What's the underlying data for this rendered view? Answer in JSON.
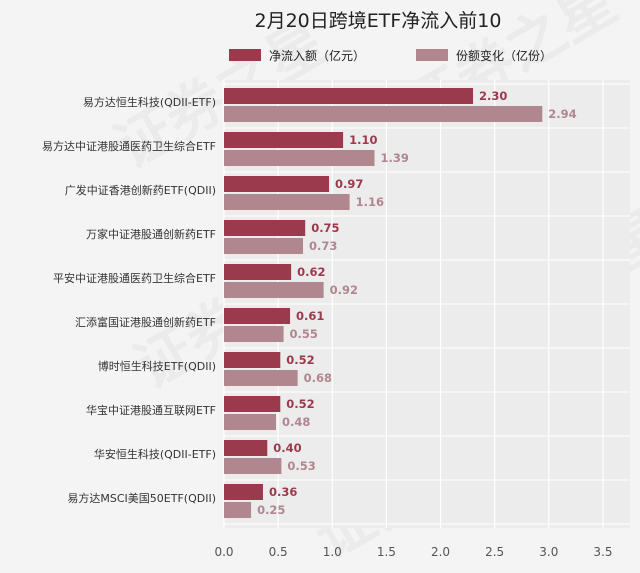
{
  "chart_data": {
    "type": "bar",
    "orientation": "horizontal",
    "title": "2月20日跨境ETF净流入前10",
    "categories": [
      "易方达恒生科技(QDII-ETF)",
      "易方达中证港股通医药卫生综合ETF",
      "广发中证香港创新药ETF(QDII)",
      "万家中证港股通创新药ETF",
      "平安中证港股通医药卫生综合ETF",
      "汇添富国证港股通创新药ETF",
      "博时恒生科技ETF(QDII)",
      "华宝中证港股通互联网ETF",
      "华安恒生科技(QDII-ETF)",
      "易方达MSCI美国50ETF(QDII)"
    ],
    "series": [
      {
        "name": "净流入额（亿元）",
        "color": "#9b3a4c",
        "values": [
          2.3,
          1.1,
          0.97,
          0.75,
          0.62,
          0.61,
          0.52,
          0.52,
          0.4,
          0.36
        ],
        "labels": [
          "2.30",
          "1.10",
          "0.97",
          "0.75",
          "0.62",
          "0.61",
          "0.52",
          "0.52",
          "0.40",
          "0.36"
        ]
      },
      {
        "name": "份额变化（亿份）",
        "color": "#b0868f",
        "values": [
          2.94,
          1.39,
          1.16,
          0.73,
          0.92,
          0.55,
          0.68,
          0.48,
          0.53,
          0.25
        ],
        "labels": [
          "2.94",
          "1.39",
          "1.16",
          "0.73",
          "0.92",
          "0.55",
          "0.68",
          "0.48",
          "0.53",
          "0.25"
        ]
      }
    ],
    "x_ticks": [
      "0.0",
      "0.5",
      "1.0",
      "1.5",
      "2.0",
      "2.5",
      "3.0",
      "3.5"
    ],
    "xlim": [
      0,
      3.75
    ],
    "grid": true,
    "legend": "top"
  },
  "watermark": "证券之星"
}
